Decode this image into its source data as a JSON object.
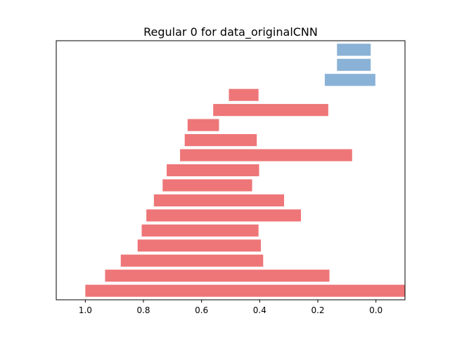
{
  "chart_data": {
    "type": "bar",
    "orientation": "horizontal",
    "title": "Regular 0 for data_originalCNN",
    "xlabel": "",
    "ylabel": "",
    "xlim": [
      1.1,
      -0.1
    ],
    "x_inverted": true,
    "yticks_shown": false,
    "grid": false,
    "xticks": [
      1.0,
      0.8,
      0.6,
      0.4,
      0.2,
      0.0
    ],
    "xtick_labels": [
      "1.0",
      "0.8",
      "0.6",
      "0.4",
      "0.2",
      "0.0"
    ],
    "colors": {
      "red": "#ee7678",
      "blue": "#8ab2d7"
    },
    "bars": [
      {
        "start": 1.0,
        "end": -0.1,
        "color": "red"
      },
      {
        "start": 0.932,
        "end": 0.16,
        "color": "red"
      },
      {
        "start": 0.878,
        "end": 0.388,
        "color": "red"
      },
      {
        "start": 0.82,
        "end": 0.396,
        "color": "red"
      },
      {
        "start": 0.806,
        "end": 0.404,
        "color": "red"
      },
      {
        "start": 0.79,
        "end": 0.258,
        "color": "red"
      },
      {
        "start": 0.764,
        "end": 0.316,
        "color": "red"
      },
      {
        "start": 0.734,
        "end": 0.426,
        "color": "red"
      },
      {
        "start": 0.72,
        "end": 0.402,
        "color": "red"
      },
      {
        "start": 0.674,
        "end": 0.082,
        "color": "red"
      },
      {
        "start": 0.658,
        "end": 0.41,
        "color": "red"
      },
      {
        "start": 0.648,
        "end": 0.54,
        "color": "red"
      },
      {
        "start": 0.56,
        "end": 0.164,
        "color": "red"
      },
      {
        "start": 0.506,
        "end": 0.404,
        "color": "red"
      },
      {
        "start": 0.176,
        "end": 0.002,
        "color": "blue"
      },
      {
        "start": 0.134,
        "end": 0.018,
        "color": "blue"
      },
      {
        "start": 0.134,
        "end": 0.018,
        "color": "blue"
      }
    ]
  }
}
